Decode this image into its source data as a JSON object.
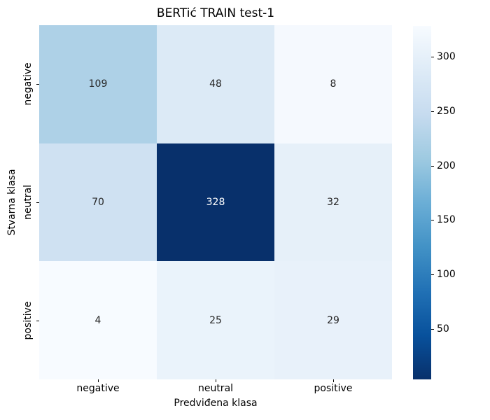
{
  "title": "BERTić TRAIN test-1",
  "chart_data": {
    "type": "heatmap",
    "title": "BERTić TRAIN test-1",
    "x_categories": [
      "negative",
      "neutral",
      "positive"
    ],
    "y_categories": [
      "negative",
      "neutral",
      "positive"
    ],
    "values": [
      [
        109,
        48,
        8
      ],
      [
        70,
        328,
        32
      ],
      [
        4,
        25,
        29
      ]
    ],
    "xlabel": "Predviđena klasa",
    "ylabel": "Stvarna klasa",
    "vmin": 4,
    "vmax": 328,
    "colormap": "Blues",
    "annotated": true,
    "grid": false,
    "colorbar": {
      "position": "right",
      "ticks": [
        50,
        100,
        150,
        200,
        250,
        300
      ]
    }
  },
  "colors": {
    "background": "#ffffff",
    "colormap_stops": [
      "#f7fbff",
      "#deebf7",
      "#c6dbef",
      "#9ecae1",
      "#6baed6",
      "#4292c6",
      "#2171b5",
      "#08519c",
      "#08306b"
    ],
    "annotation_dark": "#262626",
    "annotation_light": "#ffffff",
    "tick_color": "#000000"
  }
}
